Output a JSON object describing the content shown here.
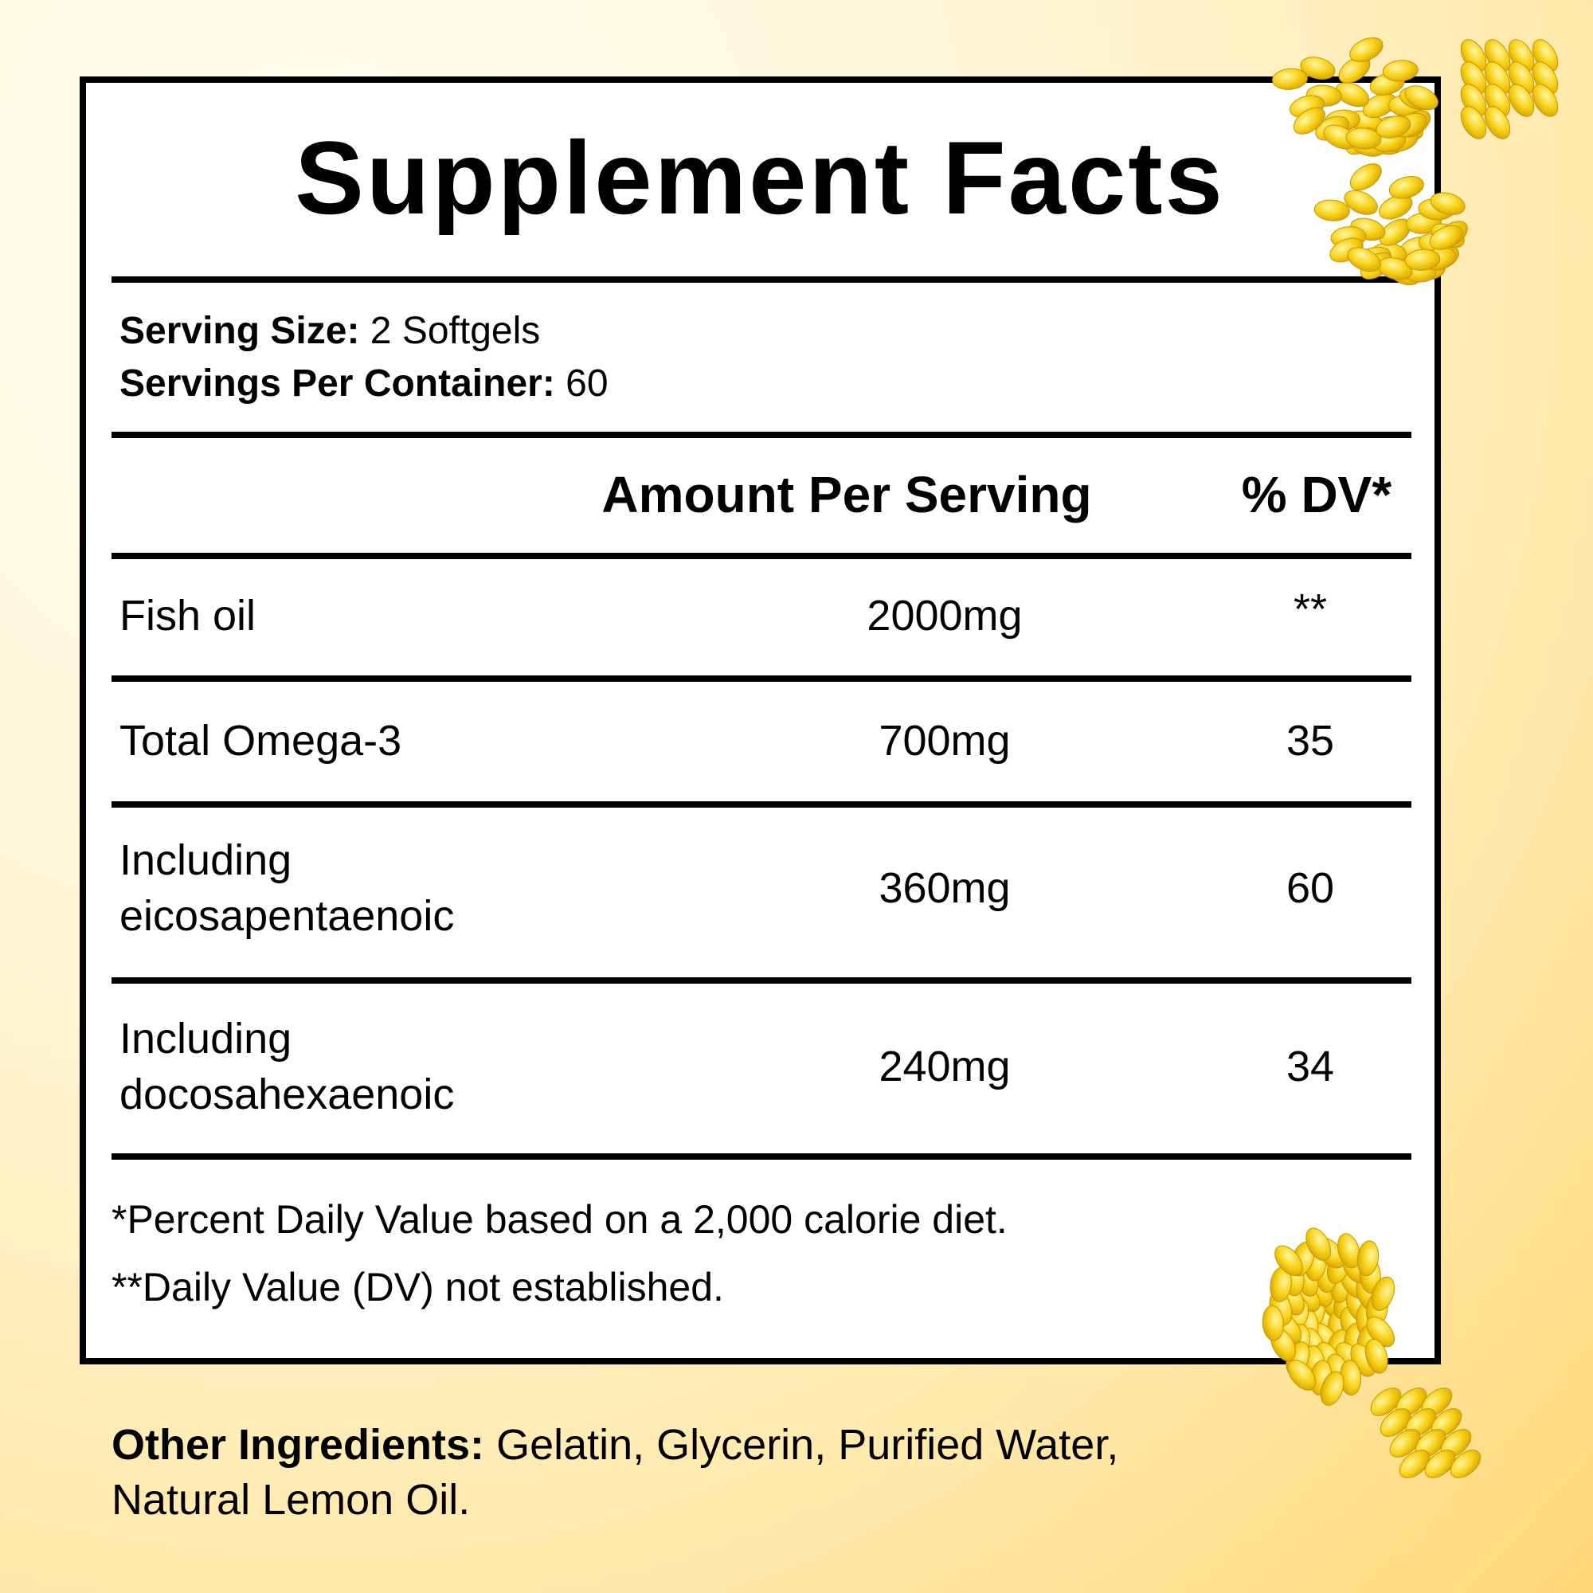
{
  "title": "Supplement Facts",
  "serving": {
    "size_label": "Serving Size:",
    "size_value": "2 Softgels",
    "per_container_label": "Servings Per Container:",
    "per_container_value": "60"
  },
  "table": {
    "header": [
      "Amount Per Serving",
      "% DV*"
    ],
    "rows": [
      {
        "name": [
          "Fish oil"
        ],
        "amount": "2000mg",
        "dv": "**"
      },
      {
        "name": [
          "Total Omega-3"
        ],
        "amount": "700mg",
        "dv": "35"
      },
      {
        "name": [
          "Including",
          "eicosapentaenoic"
        ],
        "amount": "360mg",
        "dv": "60"
      },
      {
        "name": [
          "Including",
          "docosahexaenoic"
        ],
        "amount": "240mg",
        "dv": "34"
      }
    ]
  },
  "footnotes": [
    "*Percent Daily Value based on a 2,000 calorie diet.",
    "**Daily Value (DV) not established."
  ],
  "other_ingredients": {
    "label": "Other Ingredients:",
    "value_lines": [
      "Gelatin, Glycerin, Purified Water,",
      "Natural Lemon Oil."
    ]
  }
}
